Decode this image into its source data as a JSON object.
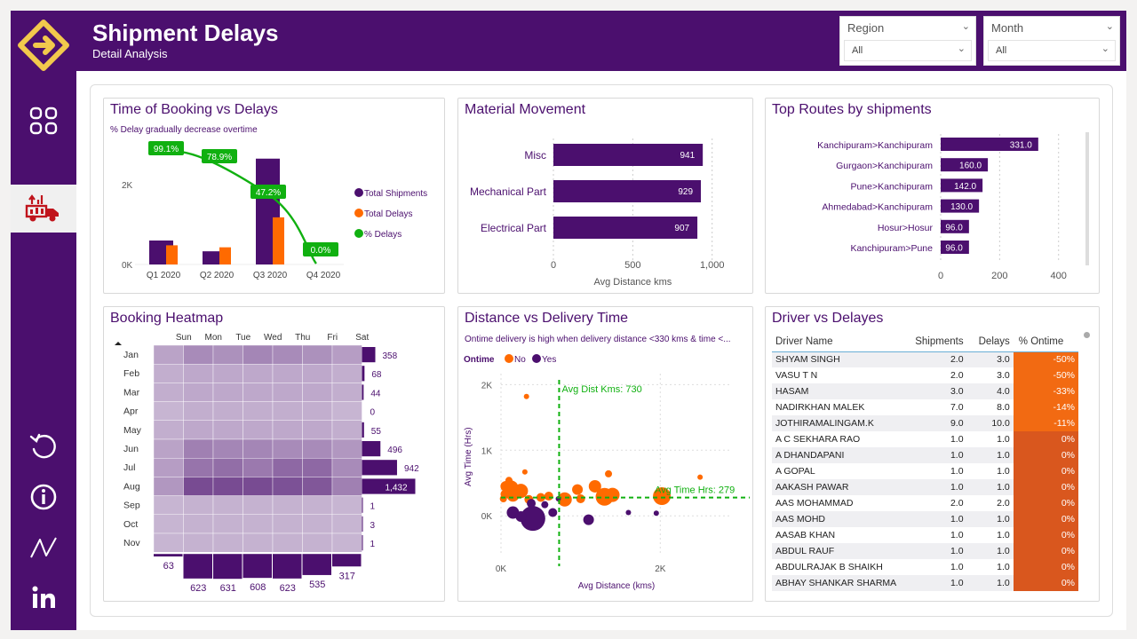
{
  "header": {
    "title": "Shipment Delays",
    "subtitle": "Detail Analysis"
  },
  "filters": [
    {
      "label": "Region",
      "value": "All"
    },
    {
      "label": "Month",
      "value": "All"
    }
  ],
  "sidebar": {
    "items": [
      {
        "name": "overview",
        "icon": "grid-icon"
      },
      {
        "name": "shipment-delays",
        "icon": "delivery-truck-icon",
        "active": true
      },
      {
        "name": "reset",
        "icon": "reset-icon"
      },
      {
        "name": "info",
        "icon": "info-icon"
      },
      {
        "name": "analytics",
        "icon": "chart-icon"
      },
      {
        "name": "linkedin",
        "icon": "linkedin-icon"
      }
    ]
  },
  "colors": {
    "purple": "#4b0f6e",
    "orange": "#ff6a00",
    "green": "#10b010",
    "bar": "#4b0f6e"
  },
  "booking": {
    "title": "Time of Booking vs Delays",
    "subtitle": "% Delay gradually decrease overtime",
    "chart_data": {
      "type": "bar",
      "categories": [
        "Q1 2020",
        "Q2 2020",
        "Q3 2020",
        "Q4 2020"
      ],
      "series": [
        {
          "name": "Total Shipments",
          "values": [
            600,
            330,
            2650,
            0
          ]
        },
        {
          "name": "Total Delays",
          "values": [
            480,
            430,
            1180,
            0
          ]
        },
        {
          "name": "% Delays",
          "values": [
            99.1,
            78.9,
            47.2,
            0.0
          ],
          "labels": [
            "99.1%",
            "78.9%",
            "47.2%",
            "0.0%"
          ]
        }
      ],
      "yticks": [
        "0K",
        "2K"
      ],
      "ylim": [
        0,
        3000
      ],
      "legend": "right"
    }
  },
  "material": {
    "title": "Material Movement",
    "chart_data": {
      "type": "bar",
      "categories": [
        "Misc",
        "Mechanical Part",
        "Electrical Part"
      ],
      "values": [
        941,
        929,
        907
      ],
      "xlabel": "Avg Distance kms",
      "xticks": [
        "0",
        "500",
        "1,000"
      ],
      "xlim": [
        0,
        1080
      ]
    }
  },
  "routes": {
    "title": "Top Routes by shipments",
    "chart_data": {
      "type": "bar",
      "categories": [
        "Kanchipuram>Kanchipuram",
        "Gurgaon>Kanchipuram",
        "Pune>Kanchipuram",
        "Ahmedabad>Kanchipuram",
        "Hosur>Hosur",
        "Kanchipuram>Pune"
      ],
      "values": [
        331.0,
        160.0,
        142.0,
        130.0,
        96.0,
        96.0
      ],
      "labels": [
        "331.0",
        "160.0",
        "142.0",
        "130.0",
        "96.0",
        "96.0"
      ],
      "xticks": [
        "0",
        "200",
        "400"
      ],
      "xlim": [
        0,
        440
      ]
    }
  },
  "heatmap": {
    "title": "Booking Heatmap",
    "chart_data": {
      "type": "heatmap",
      "days": [
        "Sun",
        "Mon",
        "Tue",
        "Wed",
        "Thu",
        "Fri",
        "Sat"
      ],
      "months": [
        "Jan",
        "Feb",
        "Mar",
        "Apr",
        "May",
        "Jun",
        "Jul",
        "Aug",
        "Sep",
        "Oct",
        "Nov"
      ],
      "month_totals": [
        358,
        68,
        44,
        0,
        55,
        496,
        942,
        1432,
        1,
        3,
        1
      ],
      "month_labels": [
        "358",
        "68",
        "44",
        "0",
        "55",
        "496",
        "942",
        "1,432",
        "1",
        "3",
        "1"
      ],
      "day_totals": [
        63,
        623,
        631,
        608,
        623,
        535,
        317
      ],
      "matrix": [
        [
          0.25,
          0.45,
          0.4,
          0.5,
          0.45,
          0.4,
          0.3
        ],
        [
          0.15,
          0.2,
          0.2,
          0.2,
          0.2,
          0.2,
          0.15
        ],
        [
          0.15,
          0.2,
          0.2,
          0.2,
          0.2,
          0.2,
          0.15
        ],
        [
          0.1,
          0.15,
          0.15,
          0.15,
          0.15,
          0.15,
          0.1
        ],
        [
          0.15,
          0.2,
          0.2,
          0.2,
          0.2,
          0.2,
          0.15
        ],
        [
          0.25,
          0.55,
          0.5,
          0.5,
          0.45,
          0.45,
          0.35
        ],
        [
          0.3,
          0.65,
          0.7,
          0.6,
          0.75,
          0.75,
          0.45
        ],
        [
          0.35,
          1.0,
          1.0,
          1.0,
          0.95,
          0.9,
          0.55
        ],
        [
          0.1,
          0.12,
          0.12,
          0.12,
          0.12,
          0.12,
          0.1
        ],
        [
          0.1,
          0.12,
          0.12,
          0.12,
          0.12,
          0.12,
          0.1
        ],
        [
          0.1,
          0.12,
          0.12,
          0.12,
          0.12,
          0.12,
          0.1
        ]
      ]
    }
  },
  "scatter": {
    "title": "Distance vs Delivery Time",
    "subtitle": "Ontime delivery is high when delivery distance <330 kms & time <...",
    "legend": {
      "title": "Ontime",
      "items": [
        "No",
        "Yes"
      ]
    },
    "chart_data": {
      "type": "scatter",
      "xlabel": "Avg Distance (kms)",
      "ylabel": "Avg Time (Hrs)",
      "xticks": [
        "0K",
        "2K"
      ],
      "yticks": [
        "0K",
        "1K",
        "2K"
      ],
      "xlim": [
        0,
        2900
      ],
      "ylim": [
        -200,
        2100
      ],
      "ref_x": {
        "value": 730,
        "label": "Avg Dist Kms: 730"
      },
      "ref_y": {
        "value": 279,
        "label": "Avg Time Hrs: 279"
      },
      "no": [
        [
          320,
          1820,
          3
        ],
        [
          60,
          450,
          6
        ],
        [
          120,
          420,
          9
        ],
        [
          250,
          380,
          8
        ],
        [
          150,
          310,
          7
        ],
        [
          30,
          260,
          4
        ],
        [
          350,
          250,
          5
        ],
        [
          500,
          280,
          5
        ],
        [
          600,
          300,
          5
        ],
        [
          800,
          250,
          8
        ],
        [
          960,
          400,
          6
        ],
        [
          1000,
          260,
          5
        ],
        [
          1180,
          450,
          7
        ],
        [
          1300,
          290,
          10
        ],
        [
          1400,
          320,
          8
        ],
        [
          2020,
          300,
          10
        ],
        [
          2500,
          590,
          3
        ],
        [
          1350,
          640,
          4
        ],
        [
          300,
          670,
          3
        ],
        [
          100,
          540,
          4
        ],
        [
          50,
          330,
          5
        ]
      ],
      "yes": [
        [
          150,
          50,
          7
        ],
        [
          400,
          -40,
          14
        ],
        [
          650,
          50,
          5
        ],
        [
          250,
          -10,
          6
        ],
        [
          1100,
          -60,
          6
        ],
        [
          550,
          170,
          4
        ],
        [
          380,
          190,
          5
        ],
        [
          1950,
          40,
          3
        ],
        [
          1600,
          50,
          3
        ],
        [
          720,
          260,
          3
        ]
      ]
    }
  },
  "drivers": {
    "title": "Driver vs Delayes",
    "columns": [
      "Driver Name",
      "Shipments",
      "Delays",
      "% Ontime"
    ],
    "rows": [
      [
        "SHYAM SINGH",
        "2.0",
        "3.0",
        "-50%"
      ],
      [
        "VASU T N",
        "2.0",
        "3.0",
        "-50%"
      ],
      [
        "HASAM",
        "3.0",
        "4.0",
        "-33%"
      ],
      [
        "NADIRKHAN MALEK",
        "7.0",
        "8.0",
        "-14%"
      ],
      [
        "JOTHIRAMALINGAM.K",
        "9.0",
        "10.0",
        "-11%"
      ],
      [
        "A C SEKHARA RAO",
        "1.0",
        "1.0",
        "0%"
      ],
      [
        "A DHANDAPANI",
        "1.0",
        "1.0",
        "0%"
      ],
      [
        "A GOPAL",
        "1.0",
        "1.0",
        "0%"
      ],
      [
        "AAKASH PAWAR",
        "1.0",
        "1.0",
        "0%"
      ],
      [
        "AAS MOHAMMAD",
        "2.0",
        "2.0",
        "0%"
      ],
      [
        "AAS MOHD",
        "1.0",
        "1.0",
        "0%"
      ],
      [
        "AASAB KHAN",
        "1.0",
        "1.0",
        "0%"
      ],
      [
        "ABDUL RAUF",
        "1.0",
        "1.0",
        "0%"
      ],
      [
        "ABDULRAJAK B SHAIKH",
        "1.0",
        "1.0",
        "0%"
      ],
      [
        "ABHAY SHANKAR SHARMA",
        "1.0",
        "1.0",
        "0%"
      ]
    ]
  }
}
